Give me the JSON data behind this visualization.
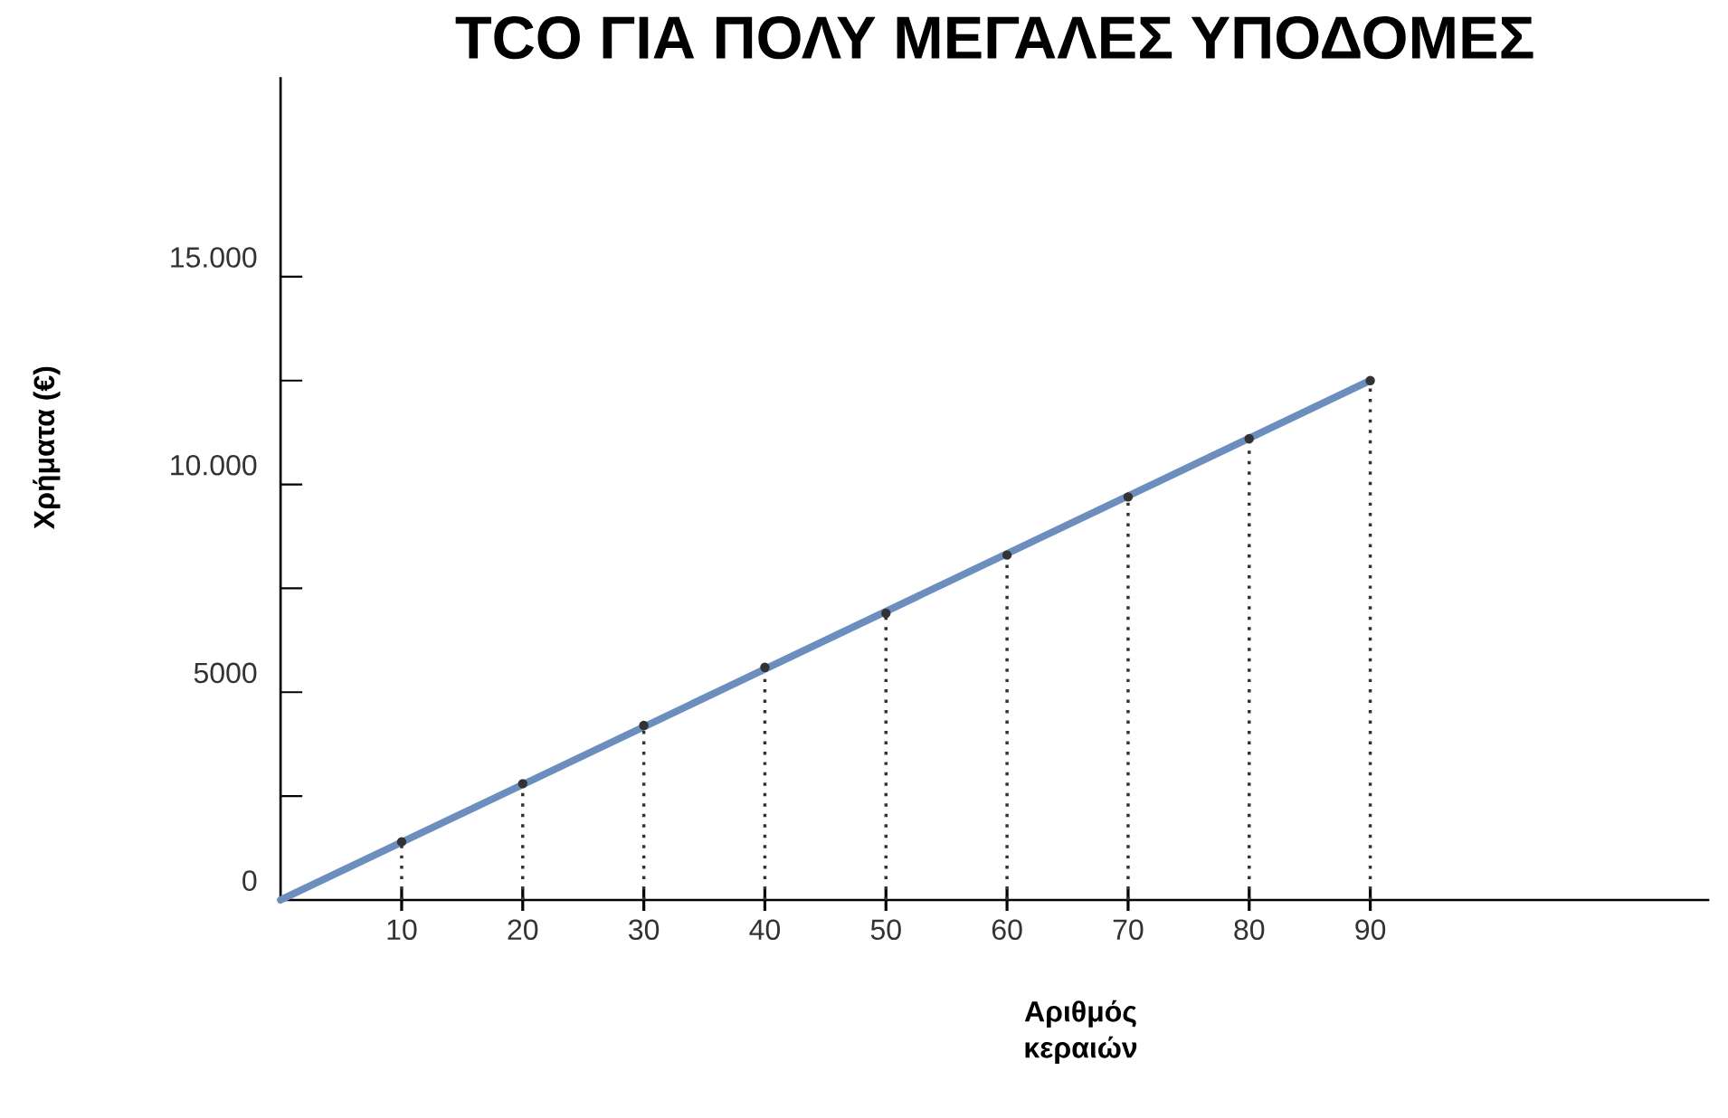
{
  "chart_data": {
    "type": "line",
    "title": "TCO ΓΙΑ ΠΟΛΥ ΜΕΓΑΛΕΣ ΥΠΟΔΟΜΕΣ",
    "xlabel": "Αριθμός κεραιών",
    "ylabel": "Χρήματα (€)",
    "xlim": [
      0,
      118
    ],
    "ylim": [
      0,
      19800
    ],
    "xticks": [
      10,
      20,
      30,
      40,
      50,
      60,
      70,
      80,
      90
    ],
    "yticks": [
      0,
      {
        "value": 2500,
        "label": null
      },
      5000,
      {
        "value": 7500,
        "label": null
      },
      {
        "value": 10000,
        "label": "10.000"
      },
      {
        "value": 12500,
        "label": null
      },
      {
        "value": 15000,
        "label": "15.000"
      }
    ],
    "series": [
      {
        "type": "line",
        "color": "#6c8ebf",
        "x": [
          0,
          90
        ],
        "values": [
          0,
          12500
        ]
      },
      {
        "type": "lollipop",
        "color": "#333333",
        "line_style": "dotted",
        "marker": "circle",
        "x": [
          10,
          20,
          30,
          40,
          50,
          60,
          70,
          80,
          90
        ],
        "values": [
          1400,
          2800,
          4200,
          5600,
          6900,
          8300,
          9700,
          11100,
          12500
        ]
      }
    ]
  }
}
